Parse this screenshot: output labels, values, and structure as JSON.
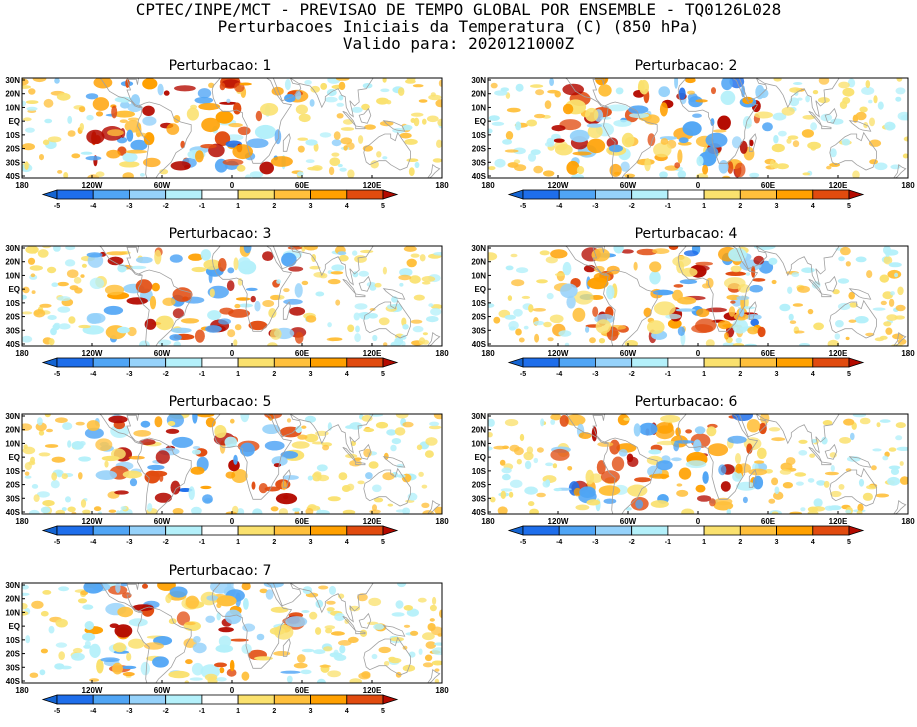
{
  "header": {
    "line1": "CPTEC/INPE/MCT - PREVISAO DE TEMPO GLOBAL POR ENSEMBLE - TQ0126L028",
    "line2": "Perturbacoes Iniciais da Temperatura (C) (850 hPa)",
    "line3": "Valido para: 2020121000Z"
  },
  "map": {
    "lat_labels": [
      "30N",
      "20N",
      "10N",
      "EQ",
      "10S",
      "20S",
      "30S",
      "40S"
    ],
    "lon_labels": [
      "180",
      "120W",
      "60W",
      "0",
      "60E",
      "120E",
      "180"
    ],
    "colorbar_labels": [
      "-5",
      "-4",
      "-3",
      "-2",
      "-1",
      "1",
      "2",
      "3",
      "4",
      "5"
    ],
    "colorbar_colors": [
      "#1464d2",
      "#1e6eeb",
      "#50a5f5",
      "#96d2fa",
      "#b4f0fa",
      "#ffffff",
      "#fae16e",
      "#ffc03c",
      "#ffa000",
      "#e14b0f",
      "#b40a00"
    ],
    "coastline_color": "#a0a0a0"
  },
  "panels": [
    {
      "title": "Perturbacao: 1"
    },
    {
      "title": "Perturbacao: 2"
    },
    {
      "title": "Perturbacao: 3"
    },
    {
      "title": "Perturbacao: 4"
    },
    {
      "title": "Perturbacao: 5"
    },
    {
      "title": "Perturbacao: 6"
    },
    {
      "title": "Perturbacao: 7"
    }
  ]
}
